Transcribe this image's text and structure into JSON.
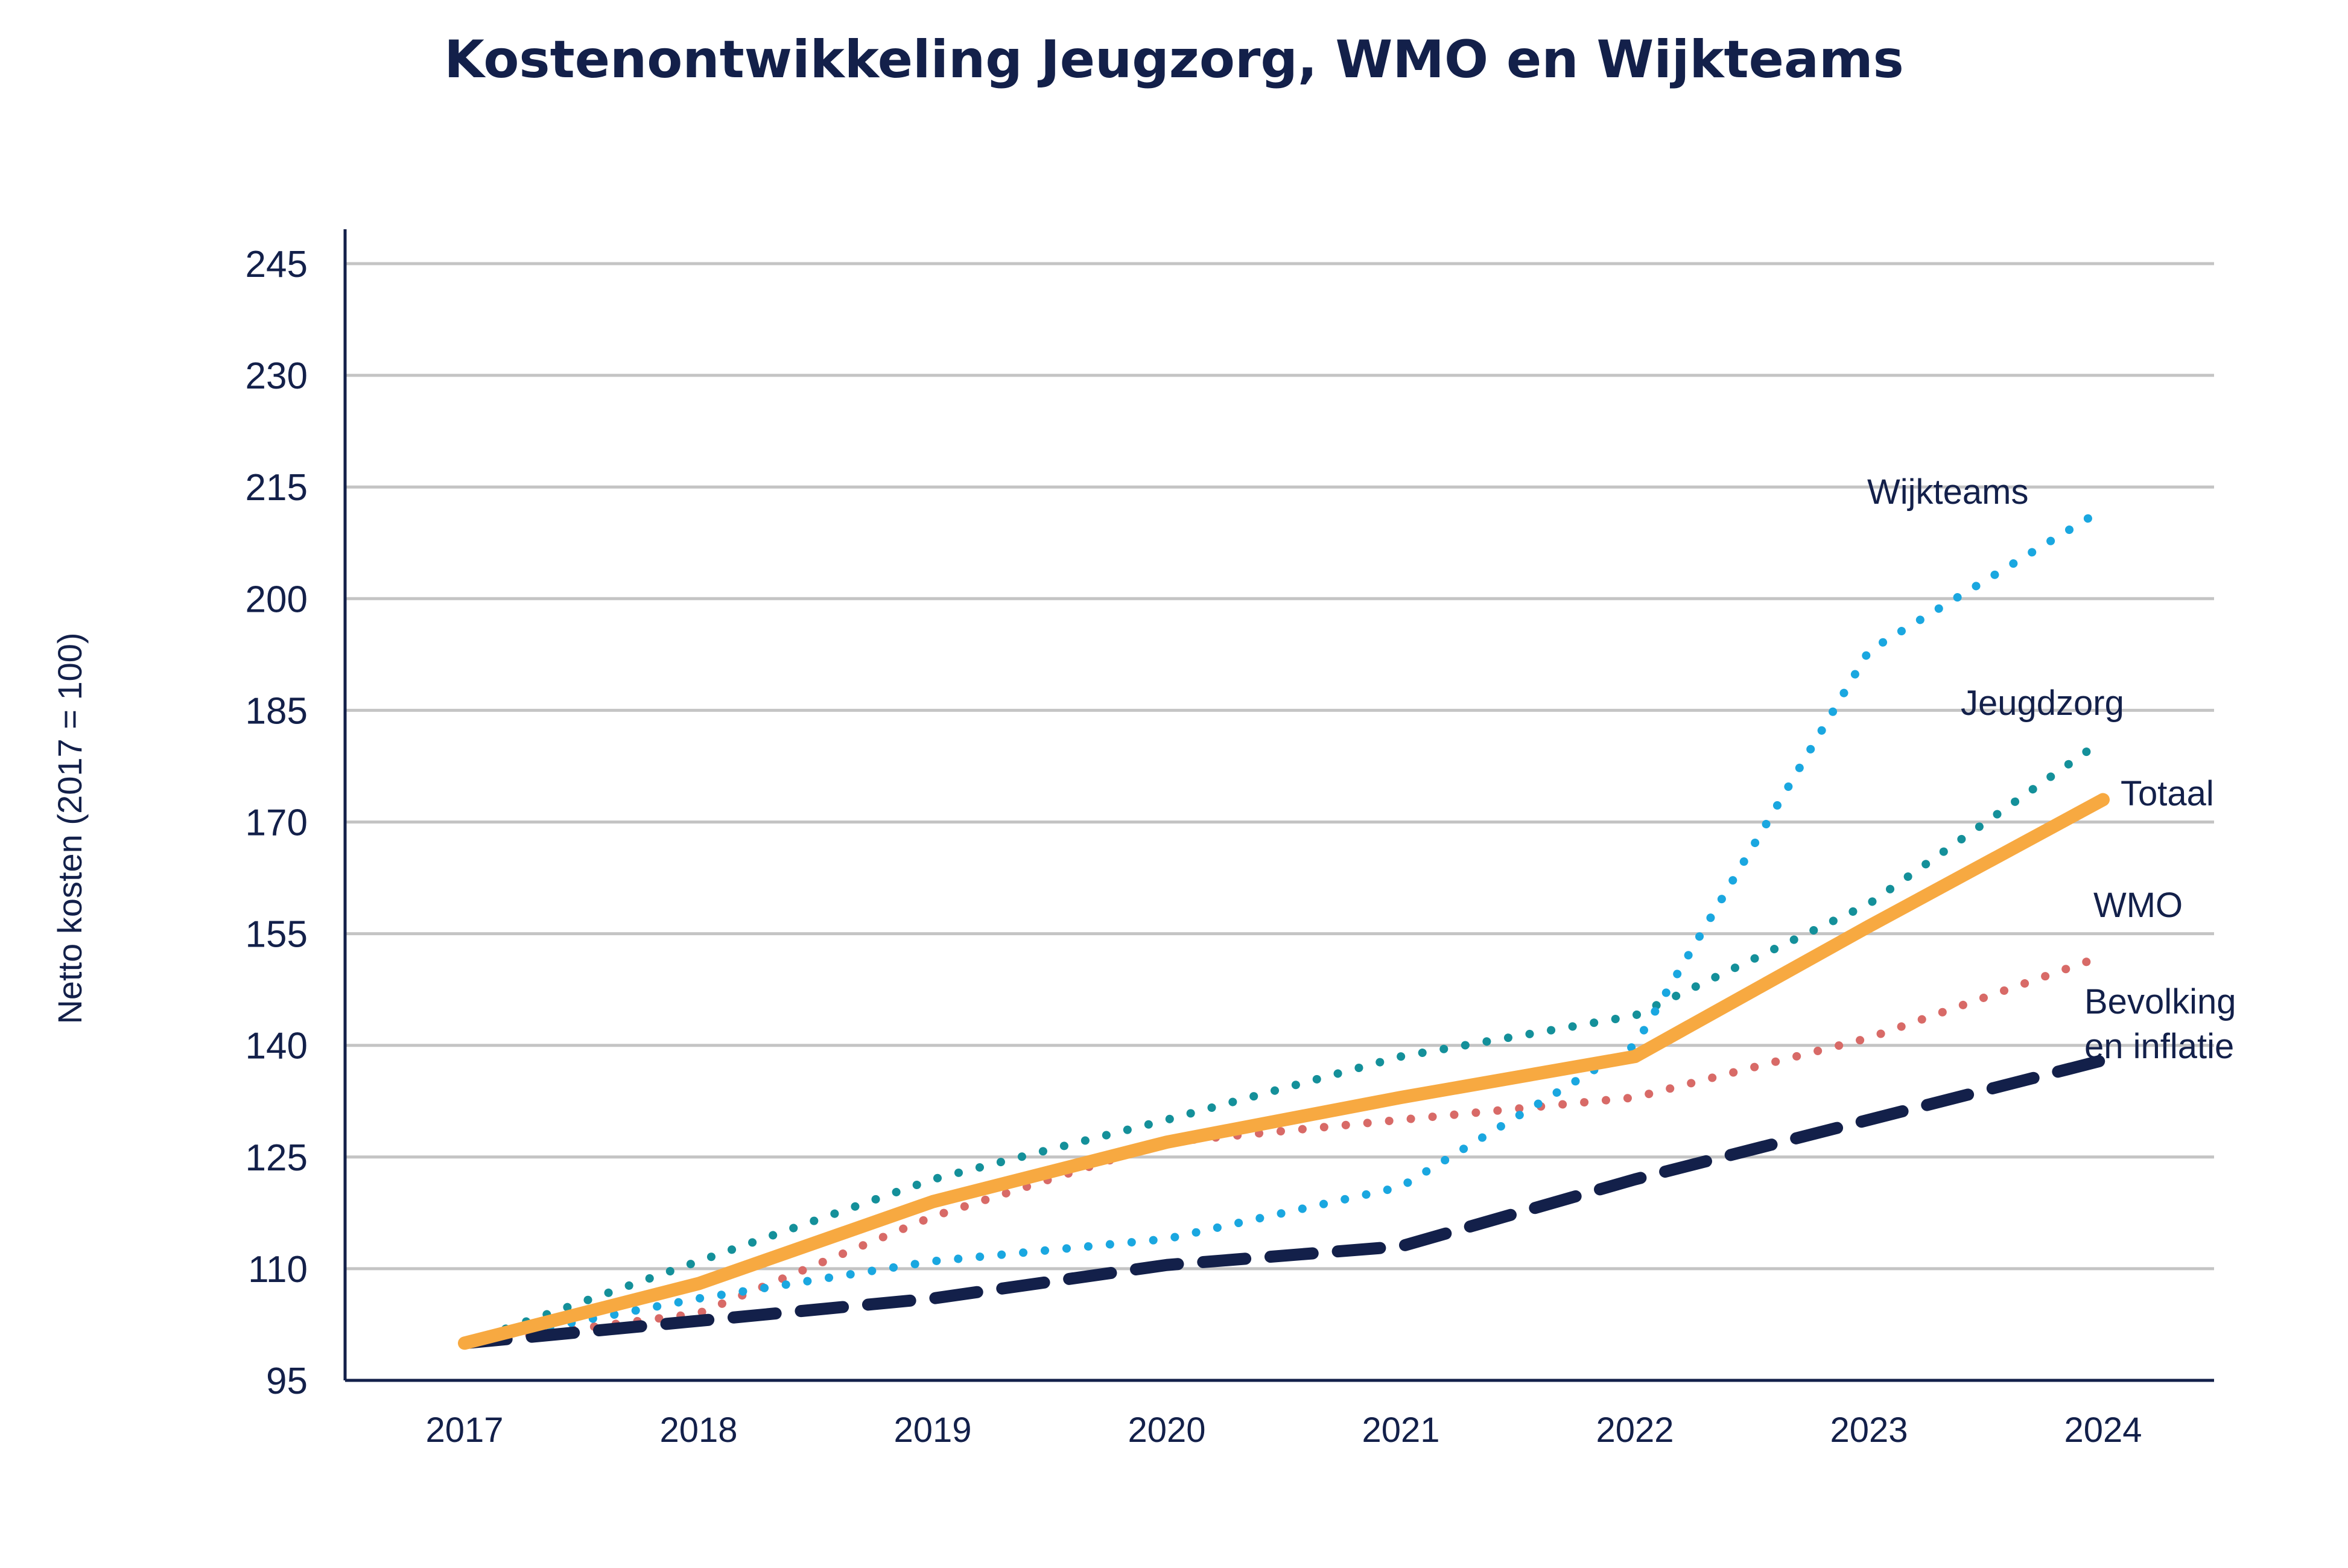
{
  "chart_data": {
    "type": "line",
    "title": "Kostenontwikkeling Jeugzorg, WMO en Wijkteams",
    "ylabel": "Netto kosten (2017 = 100)",
    "xlabel": "",
    "x": [
      "2017",
      "2018",
      "2019",
      "2020",
      "2021",
      "2022",
      "2023",
      "2024"
    ],
    "ylim": [
      95,
      250
    ],
    "yticks": [
      95,
      110,
      125,
      140,
      155,
      170,
      185,
      200,
      215,
      230,
      245
    ],
    "grid": true,
    "legend": "inline labels at line ends",
    "series": [
      {
        "name": "Wijkteams",
        "label_lines": [
          "Wijkteams"
        ],
        "values": [
          100,
          106,
          111,
          114,
          121,
          140,
          193,
          212
        ],
        "color": "#1aa7e0",
        "style": "dotted"
      },
      {
        "name": "Jeugdzorg",
        "label_lines": [
          "Jeugdzorg"
        ],
        "values": [
          100,
          111,
          122,
          130,
          138.5,
          144,
          159,
          181
        ],
        "color": "#14909a",
        "style": "dotted"
      },
      {
        "name": "Totaal",
        "label_lines": [
          "Totaal"
        ],
        "values": [
          100,
          108,
          119,
          127,
          133,
          138.5,
          156,
          173
        ],
        "color": "#f7a941",
        "style": "solid"
      },
      {
        "name": "WMO",
        "label_lines": [
          "WMO"
        ],
        "values": [
          100,
          104,
          117,
          127,
          130,
          133,
          141,
          152
        ],
        "color": "#d86a67",
        "style": "dotted"
      },
      {
        "name": "Bevolking en inflatie",
        "label_lines": [
          "Bevolking",
          "en inflatie"
        ],
        "values": [
          100,
          103,
          106,
          110.5,
          113,
          122,
          130,
          138
        ],
        "color": "#13204a",
        "style": "dashed"
      }
    ]
  }
}
